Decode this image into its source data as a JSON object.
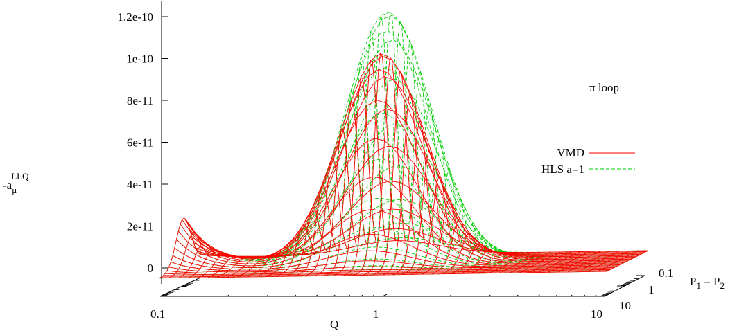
{
  "chart_data": {
    "type": "surface",
    "z_axis": {
      "label": "-a",
      "label_sub": "μ",
      "label_sup": "LLQ",
      "ticks": [
        "0",
        "2e-11",
        "4e-11",
        "6e-11",
        "8e-11",
        "1e-10",
        "1.2e-10"
      ],
      "tick_values": [
        0,
        2e-11,
        4e-11,
        6e-11,
        8e-11,
        1e-10,
        1.2e-10
      ],
      "range": [
        0,
        1.2e-10
      ]
    },
    "x_axis": {
      "label": "Q",
      "scale": "log",
      "ticks": [
        "0.1",
        "1",
        "10"
      ],
      "tick_values": [
        0.1,
        1,
        10
      ],
      "range": [
        0.1,
        10
      ]
    },
    "y_axis": {
      "label": "P",
      "label_sub1": "1",
      "label_eq": " = P",
      "label_sub2": "2",
      "scale": "log",
      "ticks": [
        "0.1",
        "1",
        "10"
      ],
      "tick_values": [
        0.1,
        1,
        10
      ],
      "range": [
        0.1,
        10
      ]
    },
    "annotation": "π loop",
    "series": [
      {
        "name": "VMD",
        "color": "#ff0000",
        "style": "solid",
        "peak_value": 1e-10,
        "peak_q": 0.75,
        "peak_p": 0.5,
        "ridge_at_q_0_1": 2.3e-11
      },
      {
        "name": "HLS a=1",
        "color": "#00cc00",
        "style": "dashed",
        "peak_value": 1.2e-10,
        "peak_q": 0.8,
        "peak_p": 0.5,
        "ridge_at_q_0_1": 2.3e-11
      }
    ]
  }
}
